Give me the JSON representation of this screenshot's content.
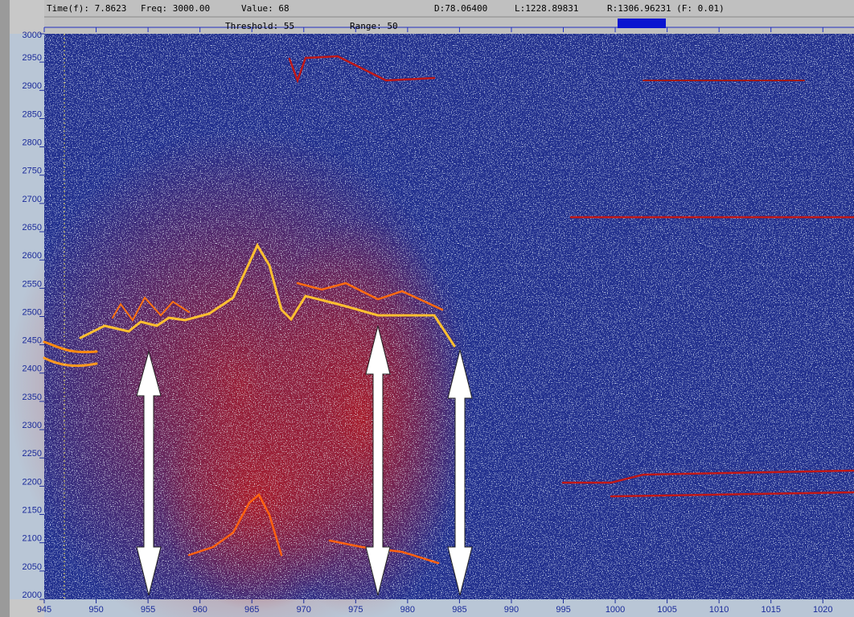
{
  "header": {
    "time": "Time(f):  7.8623",
    "freq": "Freq:  3000.00",
    "value": "Value:  68",
    "d": "D:78.06400",
    "l": "L:1228.89831",
    "r": "R:1306.96231 (F:    0.01)",
    "threshold": "Threshold: 55",
    "range": "Range: 50"
  },
  "axes": {
    "ylim": [
      2000,
      3000
    ],
    "yticks": [
      2000,
      2050,
      2100,
      2150,
      2200,
      2250,
      2300,
      2350,
      2400,
      2450,
      2500,
      2550,
      2600,
      2650,
      2700,
      2750,
      2800,
      2850,
      2900,
      2950,
      3000
    ],
    "xlim": [
      945,
      1023
    ],
    "xticks": [
      945,
      950,
      955,
      960,
      965,
      970,
      975,
      980,
      985,
      990,
      995,
      1000,
      1005,
      1010,
      1015,
      1020
    ]
  }
}
